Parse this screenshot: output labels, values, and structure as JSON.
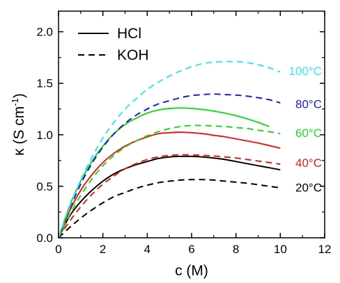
{
  "chart_data": {
    "type": "line",
    "xlabel": "c (M)",
    "ylabel_main": "κ (S cm",
    "ylabel_sup": "-1",
    "ylabel_close": ")",
    "xlim": [
      0,
      12
    ],
    "ylim": [
      0,
      2.2
    ],
    "x_ticks": [
      0,
      2,
      4,
      6,
      8,
      10,
      12
    ],
    "x_tick_labels": [
      "0",
      "2",
      "4",
      "6",
      "8",
      "10",
      "12"
    ],
    "y_ticks": [
      0,
      0.5,
      1.0,
      1.5,
      2.0
    ],
    "y_tick_labels": [
      "0.0",
      "0.5",
      "1.0",
      "1.5",
      "2.0"
    ],
    "grid": false,
    "legend_position": "top-left",
    "legend": [
      {
        "label": "HCl",
        "style": "solid"
      },
      {
        "label": "KOH",
        "style": "dashed"
      }
    ],
    "temperature_labels": [
      {
        "text": "100°C",
        "color": "#33e6f0",
        "y": 1.62
      },
      {
        "text": "80°C",
        "color": "#1a1acc",
        "y": 1.3
      },
      {
        "text": "60°C",
        "color": "#1fd91f",
        "y": 1.02
      },
      {
        "text": "40°C",
        "color": "#e61a1a",
        "y": 0.73
      },
      {
        "text": "20°C",
        "color": "#000000",
        "y": 0.49
      }
    ],
    "series": [
      {
        "name": "HCl",
        "temperature": "20°C",
        "style": "solid",
        "color": "#000000",
        "x": [
          0,
          0.5,
          1,
          1.5,
          2,
          2.5,
          3,
          3.5,
          4,
          4.5,
          5,
          5.5,
          6,
          6.5,
          7,
          7.5,
          8,
          8.5,
          9,
          9.5,
          10
        ],
        "y": [
          0,
          0.21,
          0.35,
          0.46,
          0.55,
          0.62,
          0.67,
          0.71,
          0.74,
          0.77,
          0.785,
          0.79,
          0.79,
          0.785,
          0.775,
          0.76,
          0.74,
          0.72,
          0.7,
          0.68,
          0.66
        ]
      },
      {
        "name": "HCl",
        "temperature": "40°C",
        "style": "solid",
        "color": "#e61a1a",
        "x": [
          0,
          0.5,
          1,
          1.5,
          2,
          2.5,
          3,
          3.5,
          4,
          4.5,
          5,
          5.5,
          6,
          6.5,
          7,
          7.5,
          8,
          8.5,
          9,
          9.5,
          10
        ],
        "y": [
          0,
          0.26,
          0.46,
          0.61,
          0.73,
          0.82,
          0.89,
          0.94,
          0.98,
          1.01,
          1.02,
          1.025,
          1.02,
          1.01,
          0.995,
          0.98,
          0.96,
          0.94,
          0.92,
          0.895,
          0.87
        ]
      },
      {
        "name": "HCl",
        "temperature": "60°C",
        "style": "solid",
        "color": "#1fd91f",
        "x": [
          0,
          0.5,
          1,
          1.5,
          2,
          2.5,
          3,
          3.5,
          4,
          4.5,
          5,
          5.5,
          6,
          6.5,
          7,
          7.5,
          8,
          8.5,
          9,
          9.5
        ],
        "y": [
          0,
          0.31,
          0.55,
          0.74,
          0.89,
          1.01,
          1.1,
          1.16,
          1.21,
          1.24,
          1.255,
          1.26,
          1.255,
          1.245,
          1.23,
          1.21,
          1.185,
          1.155,
          1.12,
          1.08
        ]
      },
      {
        "name": "KOH",
        "temperature": "20°C",
        "style": "dashed",
        "color": "#000000",
        "x": [
          0,
          0.5,
          1,
          1.5,
          2,
          2.5,
          3,
          3.5,
          4,
          4.5,
          5,
          5.5,
          6,
          6.5,
          7,
          7.5,
          8,
          8.5,
          9,
          9.5,
          10
        ],
        "y": [
          0,
          0.1,
          0.19,
          0.27,
          0.34,
          0.4,
          0.44,
          0.48,
          0.51,
          0.535,
          0.55,
          0.56,
          0.565,
          0.565,
          0.56,
          0.55,
          0.54,
          0.53,
          0.515,
          0.5,
          0.485
        ]
      },
      {
        "name": "KOH",
        "temperature": "40°C",
        "style": "dashed",
        "color": "#e61a1a",
        "x": [
          0,
          0.5,
          1,
          1.5,
          2,
          2.5,
          3,
          3.5,
          4,
          4.5,
          5,
          5.5,
          6,
          6.5,
          7,
          7.5,
          8,
          8.5,
          9,
          9.5,
          10
        ],
        "y": [
          0,
          0.16,
          0.3,
          0.42,
          0.52,
          0.6,
          0.67,
          0.72,
          0.76,
          0.785,
          0.8,
          0.805,
          0.805,
          0.8,
          0.795,
          0.785,
          0.775,
          0.76,
          0.745,
          0.73,
          0.715
        ]
      },
      {
        "name": "KOH",
        "temperature": "60°C",
        "style": "dashed",
        "color": "#1fd91f",
        "x": [
          0,
          0.5,
          1,
          1.5,
          2,
          2.5,
          3,
          3.5,
          4,
          4.5,
          5,
          5.5,
          6,
          6.5,
          7,
          7.5,
          8,
          8.5,
          9,
          9.5,
          10
        ],
        "y": [
          0,
          0.22,
          0.41,
          0.57,
          0.7,
          0.8,
          0.88,
          0.94,
          0.99,
          1.03,
          1.06,
          1.08,
          1.09,
          1.09,
          1.085,
          1.08,
          1.07,
          1.06,
          1.045,
          1.03,
          1.01
        ]
      },
      {
        "name": "KOH",
        "temperature": "80°C",
        "style": "dashed",
        "color": "#1a1acc",
        "x": [
          0,
          0.5,
          1,
          1.5,
          2,
          2.5,
          3,
          3.5,
          4,
          4.5,
          5,
          5.5,
          6,
          6.5,
          7,
          7.5,
          8,
          8.5,
          9,
          9.5,
          10
        ],
        "y": [
          0,
          0.28,
          0.52,
          0.72,
          0.88,
          1.01,
          1.11,
          1.19,
          1.25,
          1.3,
          1.33,
          1.36,
          1.38,
          1.39,
          1.395,
          1.39,
          1.385,
          1.375,
          1.36,
          1.34,
          1.31
        ]
      },
      {
        "name": "KOH",
        "temperature": "100°C",
        "style": "dashed",
        "color": "#33e6f0",
        "x": [
          0,
          0.5,
          1,
          1.5,
          2,
          2.5,
          3,
          3.5,
          4,
          4.5,
          5,
          5.5,
          6,
          6.5,
          7,
          7.5,
          8,
          8.5,
          9,
          9.5,
          10
        ],
        "y": [
          0,
          0.3,
          0.56,
          0.78,
          0.97,
          1.12,
          1.25,
          1.35,
          1.44,
          1.51,
          1.57,
          1.62,
          1.66,
          1.69,
          1.705,
          1.71,
          1.71,
          1.7,
          1.68,
          1.65,
          1.61
        ]
      }
    ]
  }
}
